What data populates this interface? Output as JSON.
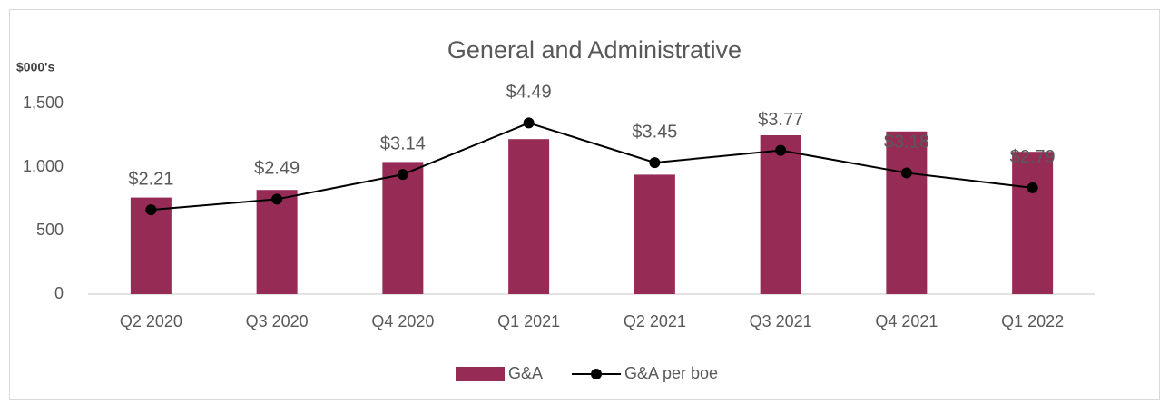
{
  "chart_data": {
    "type": "bar_line",
    "title": "General and Administrative",
    "y_label": "$000's",
    "categories": [
      "Q2 2020",
      "Q3 2020",
      "Q4 2020",
      "Q1 2021",
      "Q2 2021",
      "Q3 2021",
      "Q4 2021",
      "Q1 2022"
    ],
    "series": [
      {
        "name": "G&A",
        "type": "bar",
        "color": "#962c55",
        "values": [
          760,
          820,
          1040,
          1220,
          940,
          1250,
          1280,
          1120
        ]
      },
      {
        "name": "G&A per boe",
        "type": "line",
        "axis": "y2",
        "color": "#000000",
        "values": [
          2.21,
          2.49,
          3.14,
          4.49,
          3.45,
          3.77,
          3.18,
          2.79
        ],
        "value_labels": [
          "$2.21",
          "$2.49",
          "$3.14",
          "$4.49",
          "$3.45",
          "$3.77",
          "$3.18",
          "$2.79"
        ]
      }
    ],
    "ylim": [
      0,
      1500
    ],
    "yticks": [
      0,
      500,
      {
        "value": 1000,
        "label": "1,000"
      },
      {
        "value": 1500,
        "label": "1,500"
      }
    ],
    "y2lim": [
      0,
      5
    ],
    "grid": false,
    "legend": "bottom"
  }
}
